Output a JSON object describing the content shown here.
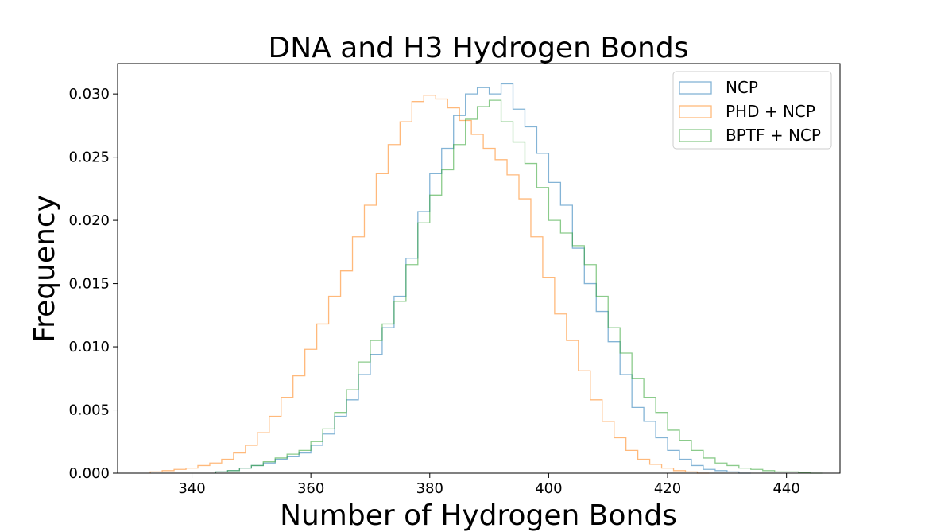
{
  "chart_data": {
    "type": "histogram",
    "title": "DNA and H3 Hydrogen Bonds",
    "xlabel": "Number of Hydrogen Bonds",
    "ylabel": "Frequency",
    "xlim": [
      327.5,
      449
    ],
    "ylim": [
      0,
      0.0324
    ],
    "xticks": [
      340,
      360,
      380,
      400,
      420,
      440
    ],
    "yticks": [
      0.0,
      0.005,
      0.01,
      0.015,
      0.02,
      0.025,
      0.03
    ],
    "ytick_labels": [
      "0.000",
      "0.005",
      "0.010",
      "0.015",
      "0.020",
      "0.025",
      "0.030"
    ],
    "legend_position": "upper right",
    "series": [
      {
        "name": "NCP",
        "color": "#1f77b4",
        "x": [
          344,
          346,
          348,
          350,
          352,
          354,
          356,
          358,
          360,
          362,
          364,
          366,
          368,
          370,
          372,
          374,
          376,
          378,
          380,
          382,
          384,
          386,
          388,
          390,
          392,
          394,
          396,
          398,
          400,
          402,
          404,
          406,
          408,
          410,
          412,
          414,
          416,
          418,
          420,
          422,
          424,
          426,
          428,
          430,
          432
        ],
        "y": [
          0.0001,
          0.0002,
          0.0004,
          0.0006,
          0.0008,
          0.0011,
          0.0013,
          0.0016,
          0.0022,
          0.0031,
          0.0045,
          0.0058,
          0.0078,
          0.0094,
          0.0115,
          0.014,
          0.017,
          0.0207,
          0.0237,
          0.0257,
          0.0283,
          0.03,
          0.0305,
          0.03,
          0.0308,
          0.0288,
          0.0274,
          0.0253,
          0.023,
          0.0212,
          0.0178,
          0.015,
          0.0128,
          0.0104,
          0.0078,
          0.0052,
          0.0041,
          0.0028,
          0.0018,
          0.0011,
          0.0006,
          0.0003,
          0.0002,
          0.0001,
          0.0
        ]
      },
      {
        "name": "PHD + NCP",
        "color": "#ff7f0e",
        "x": [
          333,
          335,
          337,
          339,
          341,
          343,
          345,
          347,
          349,
          351,
          353,
          355,
          357,
          359,
          361,
          363,
          365,
          367,
          369,
          371,
          373,
          375,
          377,
          379,
          381,
          383,
          385,
          387,
          389,
          391,
          393,
          395,
          397,
          399,
          401,
          403,
          405,
          407,
          409,
          411,
          413,
          415,
          417,
          419,
          421,
          423,
          425
        ],
        "y": [
          0.0001,
          0.0002,
          0.0003,
          0.0004,
          0.0006,
          0.0008,
          0.0011,
          0.0016,
          0.0022,
          0.0032,
          0.0045,
          0.006,
          0.0077,
          0.0098,
          0.0118,
          0.014,
          0.016,
          0.0187,
          0.0212,
          0.0237,
          0.026,
          0.0278,
          0.0294,
          0.0299,
          0.0296,
          0.0289,
          0.0279,
          0.0268,
          0.0257,
          0.0248,
          0.0236,
          0.0217,
          0.0187,
          0.0155,
          0.0126,
          0.0105,
          0.0081,
          0.0058,
          0.0041,
          0.0028,
          0.0018,
          0.0011,
          0.0007,
          0.0004,
          0.0002,
          0.0001,
          0.0
        ]
      },
      {
        "name": "BPTF + NCP",
        "color": "#2ca02c",
        "x": [
          344,
          346,
          348,
          350,
          352,
          354,
          356,
          358,
          360,
          362,
          364,
          366,
          368,
          370,
          372,
          374,
          376,
          378,
          380,
          382,
          384,
          386,
          388,
          390,
          392,
          394,
          396,
          398,
          400,
          402,
          404,
          406,
          408,
          410,
          412,
          414,
          416,
          418,
          420,
          422,
          424,
          426,
          428,
          430,
          432,
          434,
          436,
          438,
          440,
          442,
          444
        ],
        "y": [
          0.0001,
          0.0002,
          0.0004,
          0.0006,
          0.0009,
          0.0012,
          0.0015,
          0.0018,
          0.0025,
          0.0035,
          0.0048,
          0.0066,
          0.0088,
          0.0105,
          0.0118,
          0.0136,
          0.0165,
          0.0198,
          0.022,
          0.024,
          0.026,
          0.028,
          0.029,
          0.0295,
          0.0278,
          0.0262,
          0.0245,
          0.0226,
          0.02,
          0.019,
          0.018,
          0.0165,
          0.014,
          0.0115,
          0.0095,
          0.0075,
          0.006,
          0.0048,
          0.0034,
          0.0026,
          0.0018,
          0.0012,
          0.0008,
          0.0006,
          0.0004,
          0.0003,
          0.0002,
          0.0001,
          0.0001,
          5e-05,
          0.0
        ]
      }
    ]
  }
}
